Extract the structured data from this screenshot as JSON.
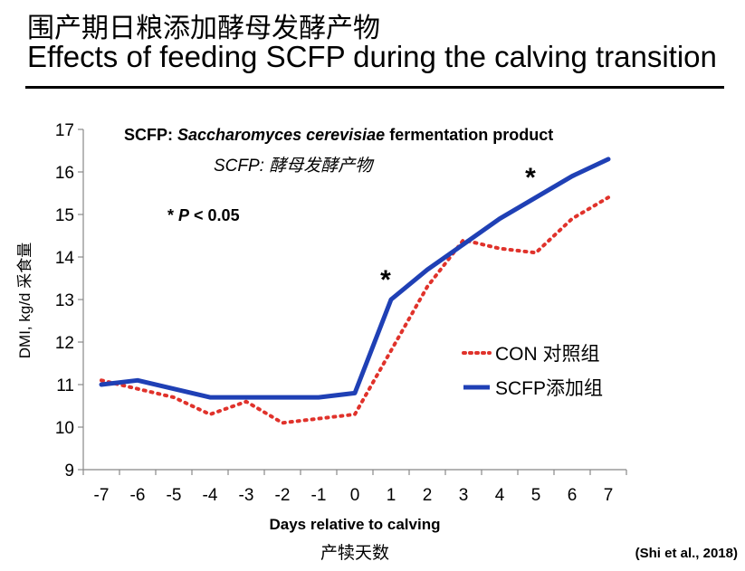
{
  "header": {
    "title_cn": "围产期日粮添加酵母发酵产物",
    "title_en": "Effects of feeding SCFP during the calving transition"
  },
  "notes": {
    "scfp_prefix": "SCFP: ",
    "scfp_species": "Saccharomyces cerevisiae",
    "scfp_suffix": " fermentation product",
    "scfp_cn": "SCFP: 酵母发酵产物",
    "p_star": "* ",
    "p_var": "P",
    "p_rest": " < 0.05"
  },
  "citation": "(Shi et al., 2018)",
  "chart_data": {
    "type": "line",
    "xlabel": "Days relative to calving",
    "xlabel_cn": "产犊天数",
    "ylabel": "DMI, kg/d  采食量",
    "x": [
      -7,
      -6,
      -5,
      -4,
      -3,
      -2,
      -1,
      0,
      1,
      2,
      3,
      4,
      5,
      6,
      7
    ],
    "ylim": [
      9,
      17
    ],
    "yticks": [
      9,
      10,
      11,
      12,
      13,
      14,
      15,
      16,
      17
    ],
    "grid": false,
    "legend_position": "right-middle",
    "series": [
      {
        "name": "CON 对照组",
        "style": "dotted",
        "color": "#e0322b",
        "values": [
          11.1,
          10.9,
          10.7,
          10.3,
          10.6,
          10.1,
          10.2,
          10.3,
          11.8,
          13.3,
          14.4,
          14.2,
          14.1,
          14.9,
          15.4
        ]
      },
      {
        "name": "SCFP添加组",
        "style": "solid",
        "color": "#1f40b5",
        "values": [
          11.0,
          11.1,
          10.9,
          10.7,
          10.7,
          10.7,
          10.7,
          10.8,
          13.0,
          13.7,
          14.3,
          14.9,
          15.4,
          15.9,
          16.3
        ]
      }
    ],
    "annotations": [
      {
        "text": "*",
        "x": 1
      },
      {
        "text": "*",
        "x": 5
      }
    ]
  }
}
